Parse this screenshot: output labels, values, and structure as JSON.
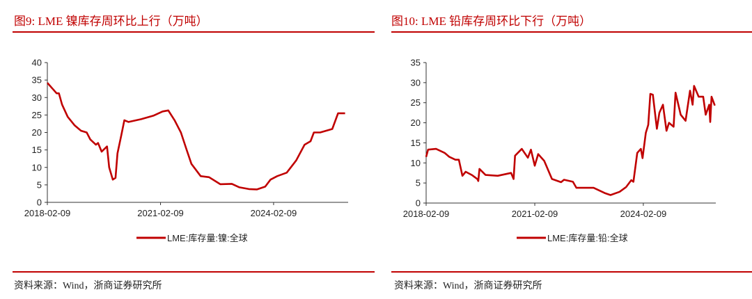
{
  "charts": [
    {
      "title": "图9:   LME 镍库存周环比上行（万吨）",
      "source": "资料来源：Wind，浙商证券研究所"
    },
    {
      "title": "图10:   LME 铅库存周环比下行（万吨）",
      "source": "资料来源：Wind，浙商证券研究所"
    }
  ],
  "chart_data": [
    {
      "type": "line",
      "title": "图9:   LME 镍库存周环比上行（万吨）",
      "ylim": [
        0,
        40
      ],
      "yticks": [
        "0",
        "5",
        "10",
        "15",
        "20",
        "25",
        "30",
        "35",
        "40"
      ],
      "xticks": [
        "2018-02-09",
        "2021-02-09",
        "2024-02-09"
      ],
      "xlim": [
        "2018-02-09",
        "2026-01-31"
      ],
      "grid": false,
      "legend_position": "bottom",
      "color": "#c00000",
      "series": [
        {
          "name": "LME:库存量:镍:全球",
          "points": [
            [
              "2018-02-09",
              34.2
            ],
            [
              "2018-04-01",
              32.5
            ],
            [
              "2018-05-10",
              31.2
            ],
            [
              "2018-06-01",
              31.2
            ],
            [
              "2018-07-01",
              28
            ],
            [
              "2018-08-25",
              24.5
            ],
            [
              "2018-11-01",
              22
            ],
            [
              "2019-01-01",
              20.5
            ],
            [
              "2019-02-25",
              20
            ],
            [
              "2019-04-01",
              18
            ],
            [
              "2019-05-25",
              16.5
            ],
            [
              "2019-06-15",
              17
            ],
            [
              "2019-07-20",
              14.5
            ],
            [
              "2019-09-10",
              16
            ],
            [
              "2019-10-01",
              10
            ],
            [
              "2019-11-05",
              6.5
            ],
            [
              "2019-12-01",
              7
            ],
            [
              "2019-12-20",
              14
            ],
            [
              "2020-01-25",
              19
            ],
            [
              "2020-02-25",
              23.5
            ],
            [
              "2020-04-05",
              23
            ],
            [
              "2020-08-05",
              23.8
            ],
            [
              "2020-12-01",
              24.8
            ],
            [
              "2021-03-01",
              26
            ],
            [
              "2021-04-25",
              26.3
            ],
            [
              "2021-06-25",
              23.5
            ],
            [
              "2021-08-25",
              20
            ],
            [
              "2021-10-20",
              15
            ],
            [
              "2021-12-05",
              11
            ],
            [
              "2022-03-05",
              7.5
            ],
            [
              "2022-05-25",
              7.2
            ],
            [
              "2022-09-10",
              5.2
            ],
            [
              "2023-01-01",
              5.3
            ],
            [
              "2023-03-15",
              4.3
            ],
            [
              "2023-06-15",
              3.8
            ],
            [
              "2023-09-01",
              3.7
            ],
            [
              "2023-11-20",
              4.5
            ],
            [
              "2024-01-10",
              6.5
            ],
            [
              "2024-03-15",
              7.5
            ],
            [
              "2024-06-15",
              8.5
            ],
            [
              "2024-09-15",
              12
            ],
            [
              "2024-12-05",
              16.5
            ],
            [
              "2025-02-01",
              17.5
            ],
            [
              "2025-03-05",
              20
            ],
            [
              "2025-05-05",
              20
            ],
            [
              "2025-08-30",
              21
            ],
            [
              "2025-10-25",
              25.5
            ],
            [
              "2026-01-01",
              25.5
            ]
          ]
        }
      ]
    },
    {
      "type": "line",
      "title": "图10:   LME 铅库存周环比下行（万吨）",
      "ylim": [
        0,
        35
      ],
      "yticks": [
        "0",
        "5",
        "10",
        "15",
        "20",
        "25",
        "30",
        "35"
      ],
      "xticks": [
        "2018-02-09",
        "2021-02-09",
        "2024-02-09"
      ],
      "xlim": [
        "2018-02-09",
        "2026-02-09"
      ],
      "grid": false,
      "legend_position": "bottom",
      "color": "#c00000",
      "series": [
        {
          "name": "LME:库存量:铅:全球",
          "points": [
            [
              "2018-02-09",
              11.5
            ],
            [
              "2018-03-01",
              13.3
            ],
            [
              "2018-05-20",
              13.5
            ],
            [
              "2018-08-15",
              12.5
            ],
            [
              "2018-10-01",
              11.5
            ],
            [
              "2018-12-01",
              10.8
            ],
            [
              "2019-01-05",
              10.8
            ],
            [
              "2019-02-10",
              6.8
            ],
            [
              "2019-03-15",
              7.8
            ],
            [
              "2019-05-15",
              7
            ],
            [
              "2019-07-10",
              6
            ],
            [
              "2019-07-20",
              5.5
            ],
            [
              "2019-08-01",
              8.5
            ],
            [
              "2019-10-01",
              7
            ],
            [
              "2020-02-01",
              6.8
            ],
            [
              "2020-06-15",
              7.5
            ],
            [
              "2020-07-10",
              6
            ],
            [
              "2020-07-25",
              11.8
            ],
            [
              "2020-10-01",
              13.5
            ],
            [
              "2020-12-01",
              11.3
            ],
            [
              "2021-01-01",
              13.3
            ],
            [
              "2021-02-09",
              9.3
            ],
            [
              "2021-03-15",
              12.2
            ],
            [
              "2021-05-15",
              10.5
            ],
            [
              "2021-08-01",
              6
            ],
            [
              "2021-11-01",
              5.2
            ],
            [
              "2021-12-01",
              5.8
            ],
            [
              "2022-03-01",
              5.3
            ],
            [
              "2022-04-05",
              3.8
            ],
            [
              "2022-09-25",
              3.8
            ],
            [
              "2023-01-15",
              2.5
            ],
            [
              "2023-03-15",
              2
            ],
            [
              "2023-06-15",
              2.8
            ],
            [
              "2023-08-20",
              4
            ],
            [
              "2023-10-10",
              5.7
            ],
            [
              "2023-11-01",
              5.3
            ],
            [
              "2023-12-10",
              12.5
            ],
            [
              "2024-01-15",
              13.5
            ],
            [
              "2024-02-01",
              11.2
            ],
            [
              "2024-03-05",
              17.5
            ],
            [
              "2024-03-30",
              19.5
            ],
            [
              "2024-04-20",
              27.2
            ],
            [
              "2024-05-15",
              27
            ],
            [
              "2024-06-25",
              18.5
            ],
            [
              "2024-07-20",
              22.5
            ],
            [
              "2024-08-25",
              24.5
            ],
            [
              "2024-09-30",
              18
            ],
            [
              "2024-10-25",
              20
            ],
            [
              "2024-12-10",
              19
            ],
            [
              "2024-12-30",
              27.5
            ],
            [
              "2025-02-20",
              22
            ],
            [
              "2025-04-10",
              20.5
            ],
            [
              "2025-05-25",
              28
            ],
            [
              "2025-06-20",
              24.5
            ],
            [
              "2025-07-05",
              29.2
            ],
            [
              "2025-08-20",
              26.5
            ],
            [
              "2025-10-05",
              26.5
            ],
            [
              "2025-10-30",
              22
            ],
            [
              "2025-12-05",
              24.5
            ],
            [
              "2025-12-15",
              20.2
            ],
            [
              "2025-12-28",
              26.5
            ],
            [
              "2026-01-30",
              24.3
            ]
          ]
        }
      ]
    }
  ]
}
